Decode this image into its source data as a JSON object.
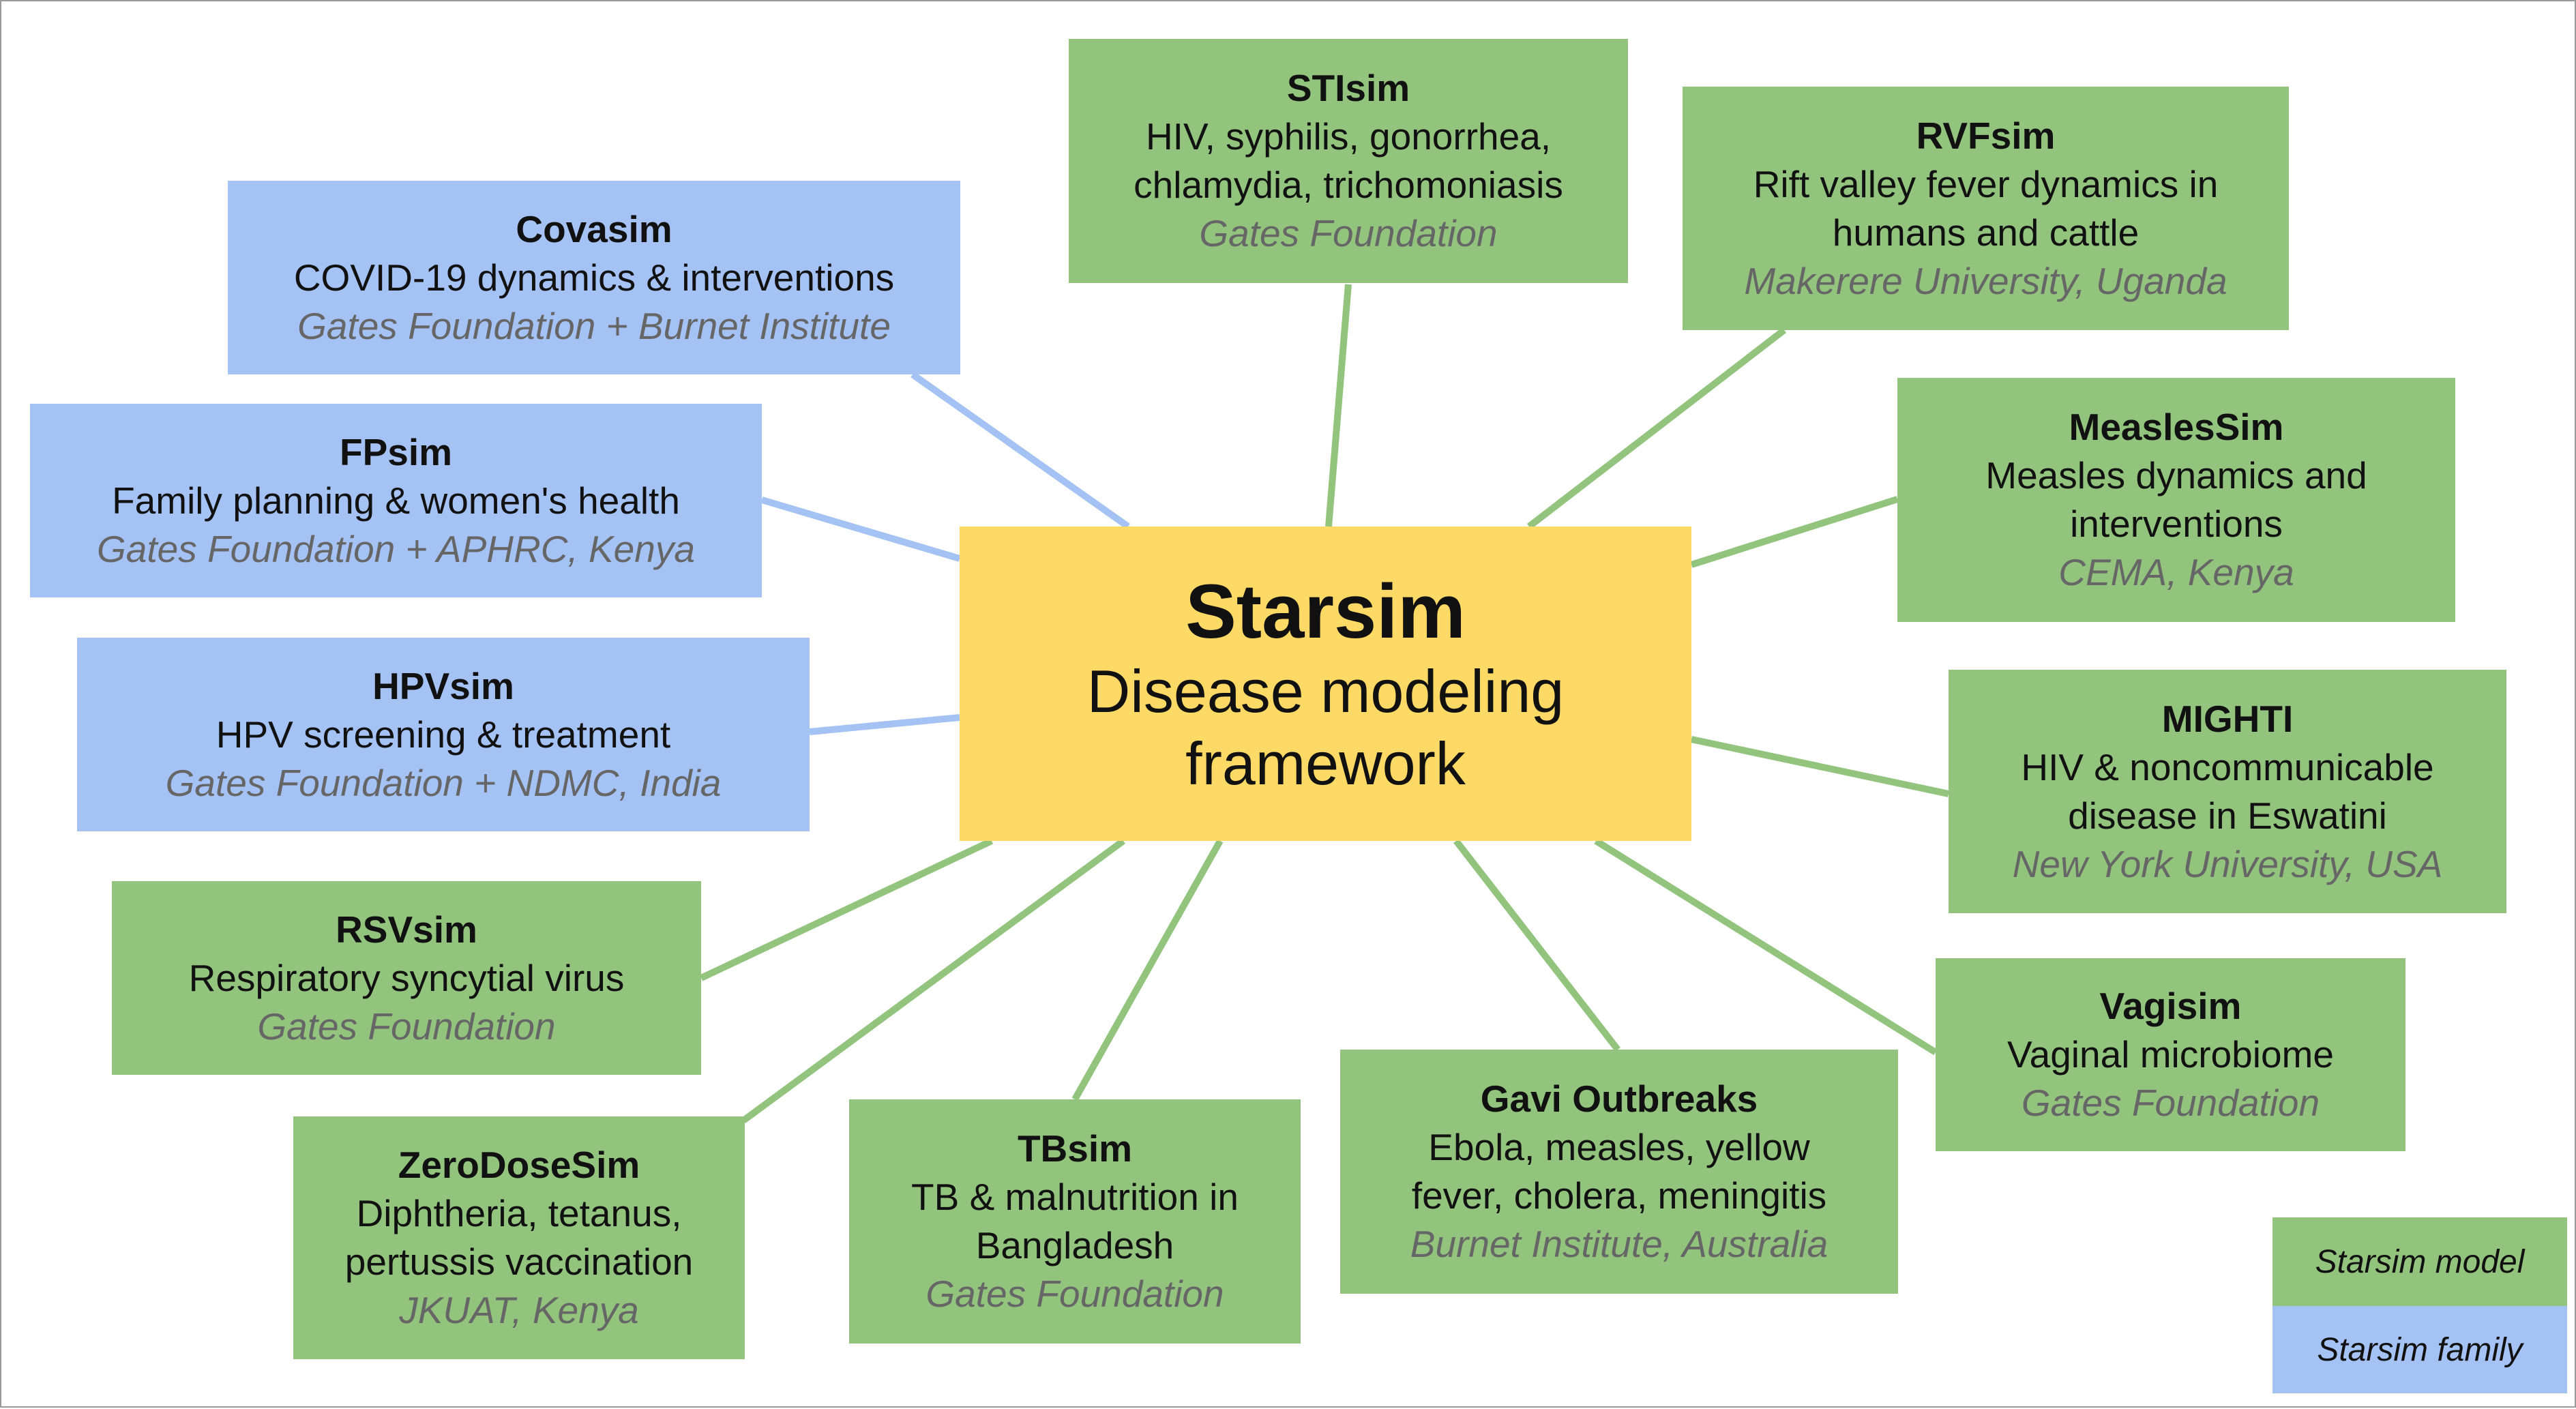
{
  "colors": {
    "model": "#92c47d",
    "family": "#a4c2f4",
    "center": "#fdd966",
    "line_model": "#92c47d",
    "line_family": "#a4c2f4",
    "org_text": "#666666"
  },
  "center": {
    "title": "Starsim",
    "desc_line1": "Disease modeling",
    "desc_line2": "framework"
  },
  "nodes": {
    "covasim": {
      "title": "Covasim",
      "lines": [
        "COVID-19 dynamics & interventions"
      ],
      "org": "Gates Foundation + Burnet Institute",
      "kind": "family"
    },
    "fpsim": {
      "title": "FPsim",
      "lines": [
        "Family planning & women's health"
      ],
      "org": "Gates Foundation + APHRC, Kenya",
      "kind": "family"
    },
    "hpvsim": {
      "title": "HPVsim",
      "lines": [
        "HPV screening & treatment"
      ],
      "org": "Gates Foundation + NDMC, India",
      "kind": "family"
    },
    "rsvsim": {
      "title": "RSVsim",
      "lines": [
        "Respiratory syncytial virus"
      ],
      "org": "Gates Foundation",
      "kind": "model"
    },
    "zerodosesim": {
      "title": "ZeroDoseSim",
      "lines": [
        "Diphtheria, tetanus,",
        "pertussis vaccination"
      ],
      "org": "JKUAT, Kenya",
      "kind": "model"
    },
    "tbsim": {
      "title": "TBsim",
      "lines": [
        "TB & malnutrition in",
        "Bangladesh"
      ],
      "org": "Gates Foundation",
      "kind": "model"
    },
    "stisim": {
      "title": "STIsim",
      "lines": [
        "HIV, syphilis, gonorrhea,",
        "chlamydia, trichomoniasis"
      ],
      "org": "Gates Foundation",
      "kind": "model"
    },
    "rvfsim": {
      "title": "RVFsim",
      "lines": [
        "Rift valley fever dynamics in",
        "humans and cattle"
      ],
      "org": "Makerere University, Uganda",
      "kind": "model"
    },
    "measlessim": {
      "title": "MeaslesSim",
      "lines": [
        "Measles dynamics and",
        "interventions"
      ],
      "org": "CEMA, Kenya",
      "kind": "model"
    },
    "mighti": {
      "title": "MIGHTI",
      "lines": [
        "HIV & noncommunicable",
        "disease in Eswatini"
      ],
      "org": "New York University, USA",
      "kind": "model"
    },
    "vagisim": {
      "title": "Vagisim",
      "lines": [
        "Vaginal microbiome"
      ],
      "org": "Gates Foundation",
      "kind": "model"
    },
    "gavi": {
      "title": "Gavi Outbreaks",
      "lines": [
        "Ebola, measles, yellow",
        "fever, cholera, meningitis"
      ],
      "org": "Burnet Institute, Australia",
      "kind": "model"
    }
  },
  "legend": {
    "model": "Starsim model",
    "family": "Starsim family"
  }
}
